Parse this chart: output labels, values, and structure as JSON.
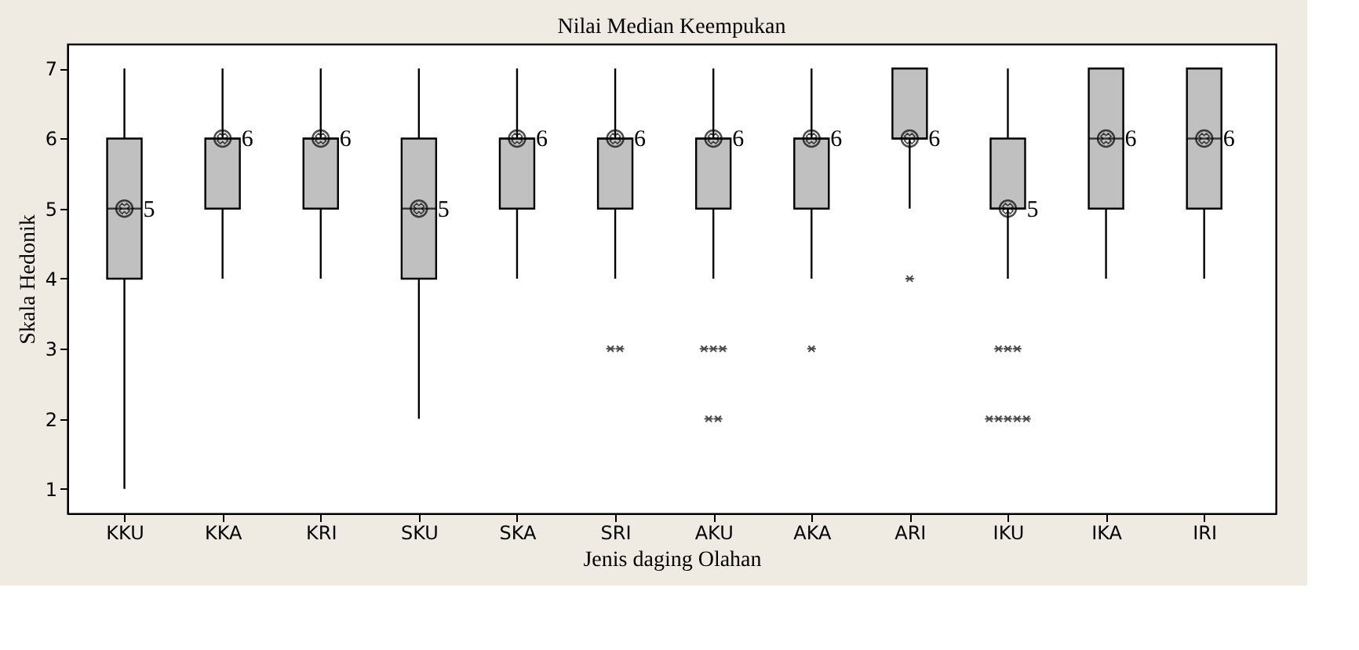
{
  "chart_data": {
    "type": "box",
    "title": "Nilai Median Keempukan",
    "xlabel": "Jenis daging Olahan",
    "ylabel": "Skala Hedonik",
    "categories": [
      "KKU",
      "KKA",
      "KRI",
      "SKU",
      "SKA",
      "SRI",
      "AKU",
      "AKA",
      "ARI",
      "IKU",
      "IKA",
      "IRI"
    ],
    "boxes": [
      {
        "low": 1,
        "q1": 4,
        "median": 5,
        "q3": 6,
        "high": 7,
        "mean": 5
      },
      {
        "low": 4,
        "q1": 5,
        "median": 6,
        "q3": 6,
        "high": 7,
        "mean": 6
      },
      {
        "low": 4,
        "q1": 5,
        "median": 6,
        "q3": 6,
        "high": 7,
        "mean": 6
      },
      {
        "low": 2,
        "q1": 4,
        "median": 5,
        "q3": 6,
        "high": 7,
        "mean": 5
      },
      {
        "low": 4,
        "q1": 5,
        "median": 6,
        "q3": 6,
        "high": 7,
        "mean": 6
      },
      {
        "low": 4,
        "q1": 5,
        "median": 6,
        "q3": 6,
        "high": 7,
        "mean": 6,
        "outliers": [
          3,
          3
        ]
      },
      {
        "low": 4,
        "q1": 5,
        "median": 6,
        "q3": 6,
        "high": 7,
        "mean": 6,
        "outliers": [
          3,
          3,
          3,
          2,
          2
        ]
      },
      {
        "low": 4,
        "q1": 5,
        "median": 6,
        "q3": 6,
        "high": 7,
        "mean": 6,
        "outliers": [
          3
        ]
      },
      {
        "low": 5,
        "q1": 6,
        "median": 6,
        "q3": 7,
        "high": 7,
        "mean": 6,
        "outliers": [
          4
        ]
      },
      {
        "low": 4,
        "q1": 5,
        "median": 5,
        "q3": 6,
        "high": 7,
        "mean": 5,
        "outliers": [
          3,
          3,
          3,
          2,
          2,
          2,
          2,
          2
        ]
      },
      {
        "low": 4,
        "q1": 5,
        "median": 6,
        "q3": 7,
        "high": 7,
        "mean": 6
      },
      {
        "low": 4,
        "q1": 5,
        "median": 6,
        "q3": 7,
        "high": 7,
        "mean": 6
      }
    ],
    "annotations": [
      {
        "text": "5",
        "x": "KKU",
        "y": 5
      },
      {
        "text": "6",
        "x": "KKA",
        "y": 6
      },
      {
        "text": "6",
        "x": "KRI",
        "y": 6
      },
      {
        "text": "5",
        "x": "SKU",
        "y": 5
      },
      {
        "text": "6",
        "x": "SKA",
        "y": 6
      },
      {
        "text": "6",
        "x": "SRI",
        "y": 6
      },
      {
        "text": "6",
        "x": "AKU",
        "y": 6
      },
      {
        "text": "6",
        "x": "AKA",
        "y": 6
      },
      {
        "text": "6",
        "x": "ARI",
        "y": 6
      },
      {
        "text": "5",
        "x": "IKU",
        "y": 5
      },
      {
        "text": "6",
        "x": "IKA",
        "y": 6
      },
      {
        "text": "6",
        "x": "IRI",
        "y": 6
      }
    ],
    "color": "#c0c0c0",
    "ylim": [
      0.65,
      7.35
    ],
    "yticks": [
      1,
      2,
      3,
      4,
      5,
      6,
      7
    ],
    "grid": false
  }
}
